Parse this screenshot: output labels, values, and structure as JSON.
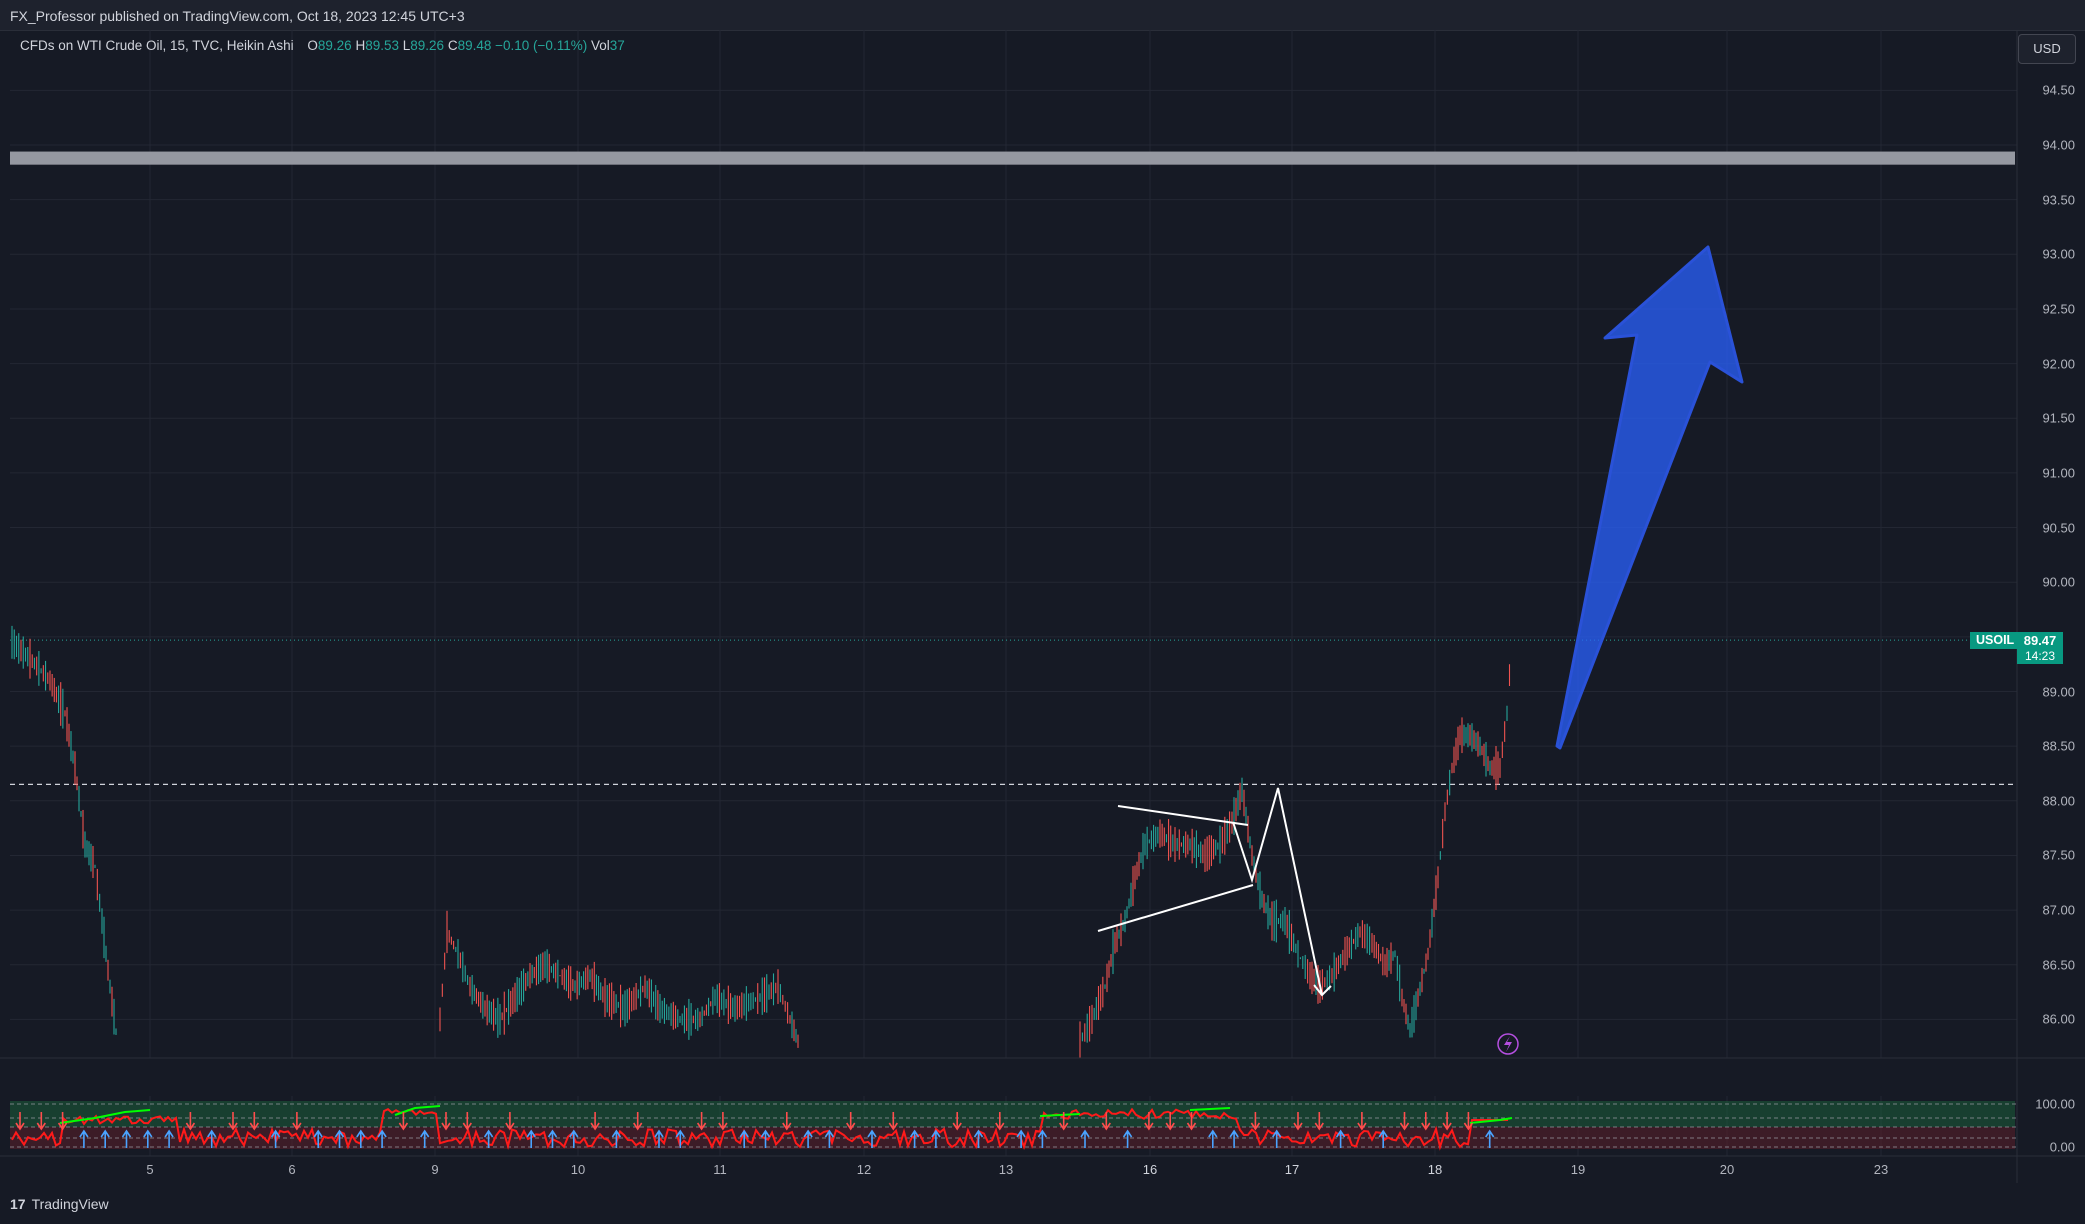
{
  "header": {
    "published_text": "FX_Professor published on TradingView.com, Oct 18, 2023 12:45 UTC+3"
  },
  "legend": {
    "symbol": "CFDs on WTI Crude Oil, 15, TVC, Heikin Ashi",
    "o_label": "O",
    "o_value": "89.26",
    "h_label": "H",
    "h_value": "89.53",
    "l_label": "L",
    "l_value": "89.26",
    "c_label": "C",
    "c_value": "89.48",
    "change": "−0.10 (−0.11%)",
    "vol_label": "Vol",
    "vol_value": "37"
  },
  "currency_button": "USD",
  "price_axis": {
    "ticks": [
      "94.50",
      "94.00",
      "93.50",
      "93.00",
      "92.50",
      "92.00",
      "91.50",
      "91.00",
      "90.50",
      "90.00",
      "89.00",
      "88.50",
      "88.00",
      "87.50",
      "87.00",
      "86.50",
      "86.00"
    ]
  },
  "last_price": {
    "symbol": "USOIL",
    "price": "89.47",
    "countdown": "14:23"
  },
  "indicator_axis": {
    "ticks": [
      "100.00",
      "0.00"
    ]
  },
  "time_axis": {
    "labels": [
      "5",
      "6",
      "9",
      "10",
      "11",
      "12",
      "13",
      "16",
      "17",
      "18",
      "19",
      "20",
      "23"
    ]
  },
  "footer": {
    "brand": "TradingView",
    "logo": "17"
  },
  "colors": {
    "background": "#161a25",
    "up": "#26a69a",
    "down": "#ef5350",
    "arrow": "#2962ff",
    "resistance_band": "#9598a1",
    "indicator_green": "#00ff00",
    "indicator_red": "#ff1a1a"
  },
  "chart_data": {
    "type": "line",
    "title": "",
    "xlabel": "",
    "ylabel": "",
    "ylim": [
      85.7,
      94.8
    ],
    "resistance_zone": [
      93.82,
      93.94
    ],
    "breakout_level": 88.15,
    "last_price_value": 89.47,
    "series": [
      {
        "name": "",
        "x": [
          "4",
          "4",
          "5",
          "5",
          "5",
          "5",
          "9",
          "9",
          "9",
          "9",
          "10",
          "10",
          "10",
          "10",
          "11",
          "11",
          "11",
          "11",
          "13",
          "13",
          "16",
          "16",
          "16",
          "16",
          "16",
          "17",
          "17",
          "17",
          "17",
          "18",
          "18",
          "18",
          "18",
          "18"
        ],
        "values": [
          89.45,
          89.2,
          88.7,
          87.3,
          86.5,
          85.7,
          85.8,
          86.9,
          86.2,
          86.0,
          86.4,
          86.1,
          86.2,
          86.0,
          86.4,
          86.0,
          86.3,
          86.2,
          85.8,
          86.7,
          87.5,
          87.7,
          87.6,
          87.8,
          88.2,
          87.0,
          86.9,
          86.4,
          86.3,
          86.7,
          86.3,
          87.8,
          88.7,
          89.5
        ]
      }
    ]
  }
}
